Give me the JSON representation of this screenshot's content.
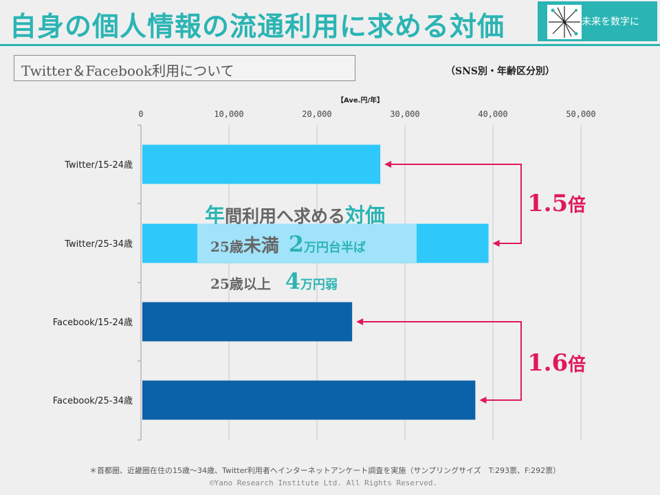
{
  "header": {
    "title": "自身の個人情報の流通利用に求める対価",
    "logo_text": "未来を数字に"
  },
  "subtitle": "Twitter＆Facebook利用について",
  "breakdown_label": "（SNS別・年齢区分別）",
  "annotation": {
    "line1_big_1": "年",
    "line1_mid": "間利用へ求める",
    "line1_big_2": "対価",
    "line2_prefix": "25歳",
    "line2_big_text": "未満",
    "line2_value": "2",
    "line2_suffix": "万円台半ば",
    "line3_prefix": "25歳以上",
    "line3_value": "4",
    "line3_suffix": "万円弱"
  },
  "ratios": [
    {
      "value": "1.5",
      "suffix": "倍"
    },
    {
      "value": "1.6",
      "suffix": "倍"
    }
  ],
  "colors": {
    "accent": "#2bb4b4",
    "twitter_bar": "#2ec8fb",
    "facebook_bar": "#0b62a8",
    "arrow": "#e0185a"
  },
  "chart_data": {
    "type": "bar",
    "orientation": "horizontal",
    "unit_label": "【Ave.円/年】",
    "categories": [
      "Twitter/15-24歳",
      "Twitter/25-34歳",
      "Facebook/15-24歳",
      "Facebook/25-34歳"
    ],
    "values": [
      27200,
      39500,
      24000,
      38000
    ],
    "bar_colors": [
      "#2ec8fb",
      "#2ec8fb",
      "#0b62a8",
      "#0b62a8"
    ],
    "xlim": [
      0,
      50000
    ],
    "xticks": [
      0,
      10000,
      20000,
      30000,
      40000,
      50000
    ],
    "xtick_labels": [
      "0",
      "10,000",
      "20,000",
      "30,000",
      "40,000",
      "50,000"
    ],
    "grid": true,
    "comparisons": [
      {
        "from": "Twitter/25-34歳",
        "to": "Twitter/15-24歳",
        "label": "1.5倍"
      },
      {
        "from": "Facebook/25-34歳",
        "to": "Facebook/15-24歳",
        "label": "1.6倍"
      }
    ]
  },
  "footnote": "＊首都圏、近畿圏在住の15歳～34歳、Twitter利用者へインターネットアンケート調査を実施（サンプリングサイズ　T:293票、F:292票）",
  "copyright": "©Yano Research Institute Ltd. All Rights Reserved."
}
